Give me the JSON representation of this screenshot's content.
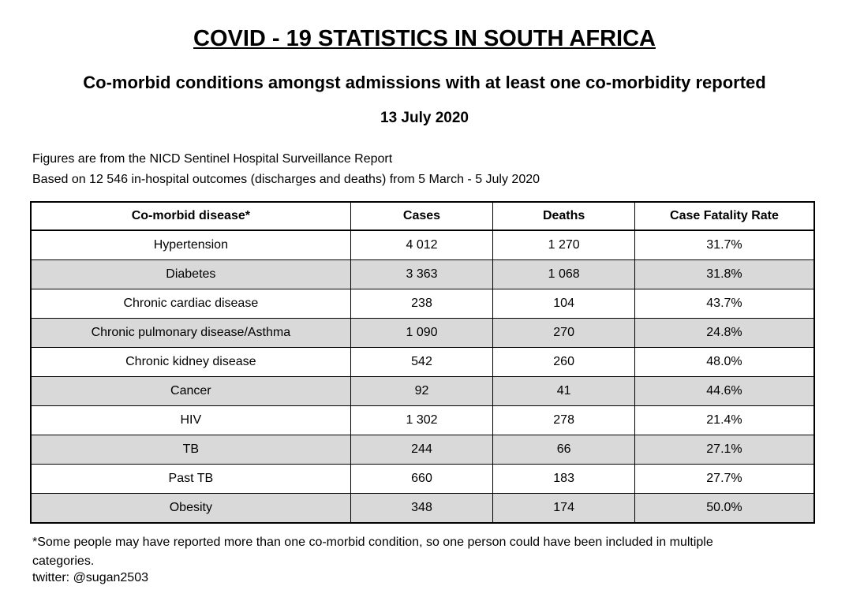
{
  "header": {
    "title": "COVID - 19 STATISTICS IN SOUTH AFRICA",
    "subtitle": "Co-morbid conditions amongst admissions with at least one co-morbidity reported",
    "date": "13 July 2020"
  },
  "notes": [
    "Figures are from the NICD Sentinel Hospital Surveillance Report",
    "Based on 12 546 in-hospital outcomes (discharges and deaths) from 5 March - 5 July 2020"
  ],
  "table": {
    "columns": [
      "Co-morbid disease*",
      "Cases",
      "Deaths",
      "Case Fatality Rate"
    ],
    "rows": [
      [
        "Hypertension",
        "4 012",
        "1 270",
        "31.7%"
      ],
      [
        "Diabetes",
        "3 363",
        "1 068",
        "31.8%"
      ],
      [
        "Chronic cardiac disease",
        "238",
        "104",
        "43.7%"
      ],
      [
        "Chronic pulmonary disease/Asthma",
        "1 090",
        "270",
        "24.8%"
      ],
      [
        "Chronic kidney disease",
        "542",
        "260",
        "48.0%"
      ],
      [
        "Cancer",
        "92",
        "41",
        "44.6%"
      ],
      [
        "HIV",
        "1 302",
        "278",
        "21.4%"
      ],
      [
        "TB",
        "244",
        "66",
        "27.1%"
      ],
      [
        "Past TB",
        "660",
        "183",
        "27.7%"
      ],
      [
        "Obesity",
        "348",
        "174",
        "50.0%"
      ]
    ]
  },
  "footer": {
    "footnote": "*Some people may have reported more than one co-morbid condition, so one person could have been included in multiple categories.",
    "credit": "twitter: @sugan2503"
  }
}
